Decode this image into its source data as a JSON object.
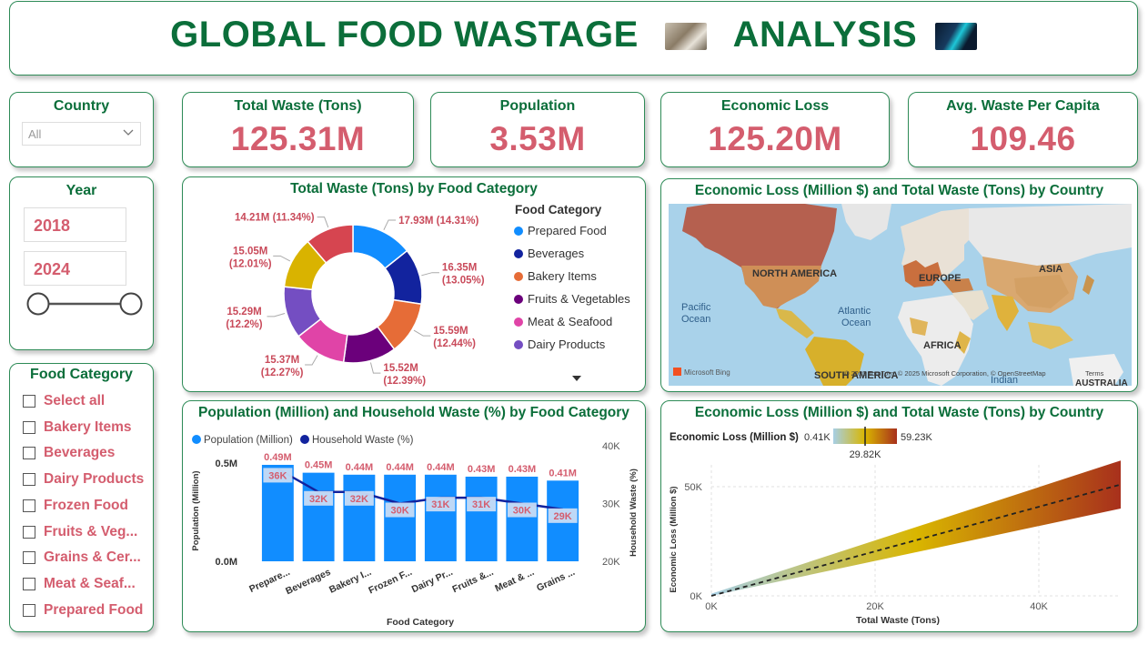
{
  "header": {
    "title_part1": "GLOBAL FOOD WASTAGE",
    "title_part2": "ANALYSIS",
    "image1_icon": "food-waste-photo-icon",
    "image2_icon": "analytics-screen-photo-icon"
  },
  "country_slicer": {
    "title": "Country",
    "selected": "All"
  },
  "year_slicer": {
    "title": "Year",
    "start": "2018",
    "end": "2024"
  },
  "kpis": [
    {
      "label": "Total Waste (Tons)",
      "value": "125.31M"
    },
    {
      "label": "Population",
      "value": "3.53M"
    },
    {
      "label": "Economic Loss",
      "value": "125.20M"
    },
    {
      "label": "Avg. Waste Per Capita",
      "value": "109.46"
    }
  ],
  "food_category_slicer": {
    "title": "Food Category",
    "items": [
      "Select all",
      "Bakery Items",
      "Beverages",
      "Dairy Products",
      "Frozen Food",
      "Fruits & Veg...",
      "Grains & Cer...",
      "Meat & Seaf...",
      "Prepared Food"
    ]
  },
  "donut": {
    "title": "Total Waste (Tons) by Food Category",
    "legend_title": "Food Category",
    "legend_items": [
      "Prepared Food",
      "Beverages",
      "Bakery Items",
      "Fruits & Vegetables",
      "Meat & Seafood",
      "Dairy Products"
    ]
  },
  "map": {
    "title": "Economic Loss (Million $) and Total Waste (Tons) by Country",
    "labels": {
      "north_america": "NORTH AMERICA",
      "europe": "EUROPE",
      "asia": "ASIA",
      "africa": "AFRICA",
      "south_america": "SOUTH AMERICA",
      "australia": "AUSTRALIA",
      "pacific": "Pacific Ocean",
      "atlantic": "Atlantic Ocean",
      "indian": "Indian",
      "bing": "Microsoft Bing",
      "copyright": "© 2025 TomTom, © 2025 Microsoft Corporation, © OpenStreetMap",
      "terms": "Terms"
    }
  },
  "bar_combo": {
    "title": "Population (Million) and Household Waste (%) by Food Category",
    "legend": [
      "Population (Million)",
      "Household Waste (%)"
    ],
    "xlabel": "Food Category",
    "ylabel_left": "Population (Million)",
    "ylabel_right": "Household Waste (%)",
    "left_ticks": [
      "0.5M",
      "0.0M"
    ],
    "right_ticks": [
      "40K",
      "30K",
      "20K"
    ]
  },
  "scatter": {
    "title": "Economic Loss (Million $) and Total Waste (Tons) by Country",
    "legend_label": "Economic Loss (Million $)",
    "legend_min": "0.41K",
    "legend_max": "59.23K",
    "legend_mid": "29.82K",
    "xlabel": "Total Waste (Tons)",
    "ylabel": "Economic Loss (Million $)",
    "x_ticks": [
      "0K",
      "20K",
      "40K"
    ],
    "y_ticks": [
      "50K",
      "0K"
    ]
  },
  "colors": {
    "accent_green": "#0b6e3a",
    "kpi_red": "#d45d6e",
    "bar_blue": "#118dff",
    "line_navy": "#12239e"
  },
  "chart_data": [
    {
      "type": "pie",
      "title": "Total Waste (Tons) by Food Category",
      "categories": [
        "Prepared Food",
        "Beverages",
        "Bakery Items",
        "Fruits & Vegetables",
        "Meat & Seafood",
        "Dairy Products",
        "Frozen Food",
        "Grains & Cereals"
      ],
      "values": [
        17.93,
        16.35,
        15.59,
        15.52,
        15.37,
        15.29,
        15.05,
        14.21
      ],
      "percent": [
        14.31,
        13.05,
        12.44,
        12.39,
        12.27,
        12.2,
        12.01,
        11.34
      ],
      "labels": [
        "17.93M (14.31%)",
        "16.35M (13.05%)",
        "15.59M (12.44%)",
        "15.52M (12.39%)",
        "15.37M (12.27%)",
        "15.29M (12.2%)",
        "15.05M (12.01%)",
        "14.21M (11.34%)"
      ],
      "colors": [
        "#118dff",
        "#12239e",
        "#e66c37",
        "#6b007b",
        "#e044a7",
        "#744ec2",
        "#d9b300",
        "#d64550"
      ],
      "legend_position": "right"
    },
    {
      "type": "bar",
      "title": "Population (Million) and Household Waste (%) by Food Category",
      "categories": [
        "Prepare...",
        "Beverages",
        "Bakery I...",
        "Frozen F...",
        "Dairy Pr...",
        "Fruits &...",
        "Meat & ...",
        "Grains ..."
      ],
      "series": [
        {
          "name": "Population (Million)",
          "type": "bar",
          "values": [
            0.49,
            0.45,
            0.44,
            0.44,
            0.44,
            0.43,
            0.43,
            0.41
          ],
          "labels": [
            "0.49M",
            "0.45M",
            "0.44M",
            "0.44M",
            "0.44M",
            "0.43M",
            "0.43M",
            "0.41M"
          ]
        },
        {
          "name": "Household Waste (%)",
          "type": "line",
          "values": [
            36,
            32,
            32,
            30,
            31,
            31,
            30,
            29
          ],
          "labels": [
            "36K",
            "32K",
            "32K",
            "30K",
            "31K",
            "31K",
            "30K",
            "29K"
          ]
        }
      ],
      "y_left_range": [
        0,
        0.55
      ],
      "y_right_range": [
        20,
        40
      ],
      "legend_position": "top-left"
    },
    {
      "type": "scatter",
      "title": "Economic Loss (Million $) and Total Waste (Tons) by Country",
      "xlabel": "Total Waste (Tons)",
      "ylabel": "Economic Loss (Million $)",
      "xlim": [
        0,
        50
      ],
      "ylim": [
        0,
        60
      ],
      "trend": {
        "x": [
          0,
          50
        ],
        "y": [
          0,
          51
        ]
      },
      "band": {
        "x": [
          0,
          50
        ],
        "y_low": [
          0,
          40
        ],
        "y_high": [
          1,
          62
        ]
      },
      "color_scale": {
        "min": 0.41,
        "mid": 29.82,
        "max": 59.23
      }
    }
  ]
}
